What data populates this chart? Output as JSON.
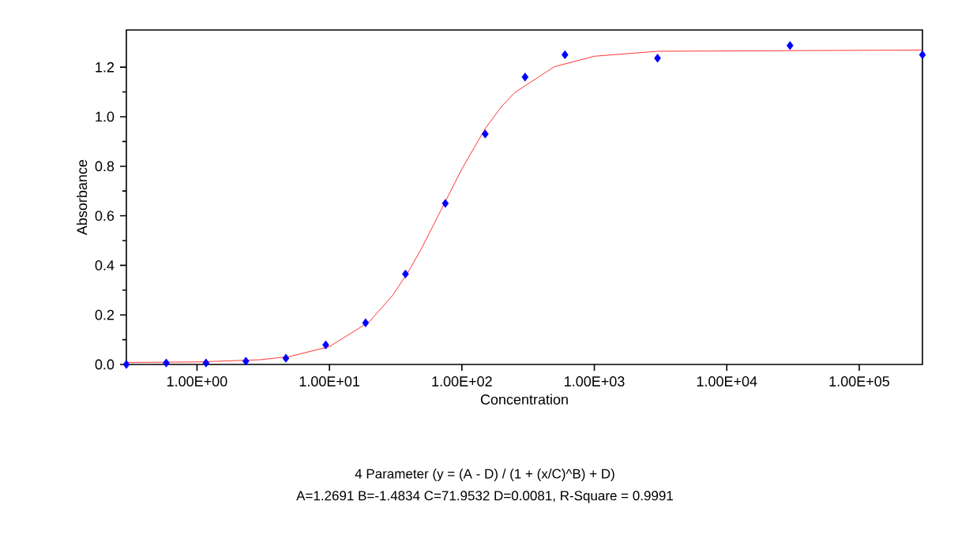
{
  "chart_data": {
    "type": "scatter",
    "xlabel": "Concentration",
    "ylabel": "Absorbance",
    "log": "x",
    "grid": false,
    "xlim": [
      0.293,
      300000
    ],
    "ylim": [
      0,
      1.35
    ],
    "xticks": [
      {
        "value": 1,
        "label": "1.00E+00"
      },
      {
        "value": 10,
        "label": "1.00E+01"
      },
      {
        "value": 100,
        "label": "1.00E+02"
      },
      {
        "value": 1000,
        "label": "1.00E+03"
      },
      {
        "value": 10000,
        "label": "1.00E+04"
      },
      {
        "value": 100000,
        "label": "1.00E+05"
      }
    ],
    "yticks": [
      {
        "value": 0,
        "label": "0.0"
      },
      {
        "value": 0.2,
        "label": "0.2"
      },
      {
        "value": 0.4,
        "label": "0.4"
      },
      {
        "value": 0.6,
        "label": "0.6"
      },
      {
        "value": 0.8,
        "label": "0.8"
      },
      {
        "value": 1.0,
        "label": "1.0"
      },
      {
        "value": 1.2,
        "label": "1.2"
      }
    ],
    "series": [
      {
        "type": "line",
        "marker": "none",
        "color": "#ff0000",
        "x": [
          0.293,
          1,
          3,
          5,
          10,
          20,
          30,
          40,
          50,
          72,
          100,
          150,
          200,
          250,
          500,
          1000,
          3000,
          300000
        ],
        "values": [
          0.008,
          0.01,
          0.019,
          0.032,
          0.072,
          0.172,
          0.279,
          0.38,
          0.472,
          0.639,
          0.789,
          0.952,
          1.042,
          1.097,
          1.202,
          1.244,
          1.264,
          1.269
        ]
      },
      {
        "marker": "diamond",
        "color": "#0000ff",
        "x": [
          0.293,
          0.586,
          1.17,
          2.34,
          4.69,
          9.38,
          18.75,
          37.5,
          75,
          150,
          300,
          600,
          3000,
          30000,
          300000
        ],
        "values": [
          0,
          0.006,
          0.006,
          0.013,
          0.025,
          0.079,
          0.168,
          0.365,
          0.65,
          0.93,
          1.16,
          1.25,
          1.236,
          1.287,
          1.25
        ]
      }
    ],
    "annotations": [
      "4 Parameter (y = (A - D) / (1 + (x/C)^B) + D)",
      "A=1.2691  B=-1.4834  C=71.9532  D=0.0081, R-Square = 0.9991"
    ]
  }
}
